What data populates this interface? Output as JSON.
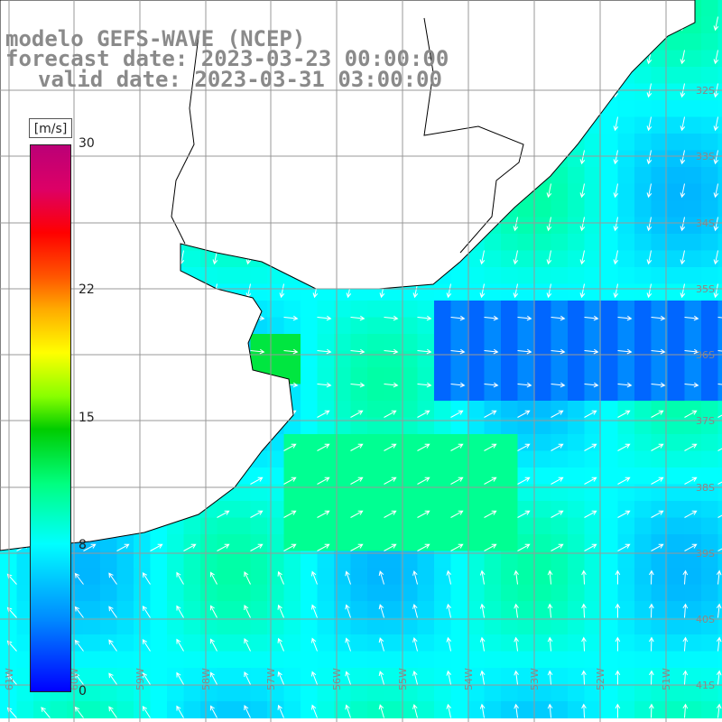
{
  "title": {
    "model": "modelo GEFS-WAVE (NCEP)",
    "forecast": "forecast date: 2023-03-23 00:00:00",
    "valid": "valid date: 2023-03-31 03:00:00"
  },
  "colorbar": {
    "units": "[m/s]",
    "ticks": [
      {
        "value": 30,
        "label": "30"
      },
      {
        "value": 22,
        "label": "22"
      },
      {
        "value": 15,
        "label": "15"
      },
      {
        "value": 8,
        "label": "8"
      },
      {
        "value": 0,
        "label": "0"
      }
    ],
    "min": 0,
    "max": 30
  },
  "grid": {
    "lat_labels": [
      "32S",
      "33S",
      "34S",
      "35S",
      "36S",
      "37S",
      "38S",
      "39S",
      "40S",
      "41S"
    ],
    "lon_labels": [
      "61W",
      "60W",
      "59W",
      "58W",
      "57W",
      "56W",
      "55W",
      "54W",
      "53W",
      "52W",
      "51W"
    ]
  },
  "colors": {
    "land": "#ffffff",
    "coast": "#000000",
    "gridline": "#999999",
    "arrow": "#ffffff",
    "label": "#888888"
  },
  "wind_field": {
    "variable": "wind speed",
    "units": "m/s",
    "arrow_direction_note": "arrows show wind direction"
  }
}
